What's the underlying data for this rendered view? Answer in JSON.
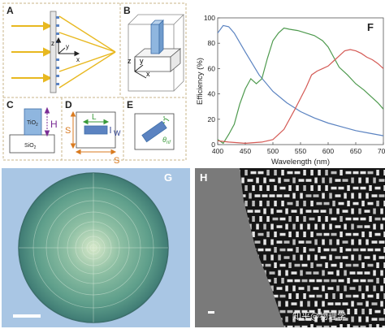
{
  "panels": {
    "A": "A",
    "B": "B",
    "C": "C",
    "D": "D",
    "E": "E",
    "F": "F",
    "G": "G",
    "H": "H"
  },
  "panel_a": {
    "axis_z": "z",
    "axis_y": "y",
    "axis_x": "x"
  },
  "panel_b": {
    "axis_z": "z",
    "axis_y": "y",
    "axis_x": "x"
  },
  "panel_c": {
    "pillar": "TiO",
    "pillar_sub": "2",
    "substrate": "SiO",
    "substrate_sub": "2",
    "height": "H"
  },
  "panel_d": {
    "length": "L",
    "width": "W",
    "period_left": "S",
    "period_bottom": "S"
  },
  "panel_e": {
    "angle": "θ",
    "angle_sub": "nf"
  },
  "panel_h": {
    "watermark": "知乎@物理学"
  },
  "colors": {
    "blue": "#5b83c1",
    "green": "#4e9a4e",
    "red": "#d45a55",
    "arrow": "#e8b820",
    "pillar": "#8fb6df"
  },
  "chart_data": {
    "type": "line",
    "xlabel": "Wavelength (nm)",
    "ylabel": "Efficiency (%)",
    "xlim": [
      400,
      700
    ],
    "ylim": [
      0,
      100
    ],
    "x_ticks": [
      400,
      450,
      500,
      550,
      600,
      650,
      700
    ],
    "y_ticks": [
      0,
      20,
      40,
      60,
      80,
      100
    ],
    "series": [
      {
        "color": "#5b83c1",
        "x": [
          400,
          410,
          420,
          430,
          450,
          475,
          500,
          525,
          550,
          575,
          600,
          625,
          650,
          675,
          700
        ],
        "y": [
          88,
          94,
          93,
          88,
          73,
          55,
          42,
          33,
          26,
          21,
          17,
          14,
          11,
          9,
          7
        ]
      },
      {
        "color": "#4e9a4e",
        "x": [
          400,
          410,
          420,
          430,
          440,
          450,
          460,
          470,
          480,
          490,
          500,
          510,
          520,
          530,
          545,
          560,
          575,
          590,
          600,
          610,
          620,
          635,
          650,
          665,
          680,
          690,
          700
        ],
        "y": [
          4,
          1,
          8,
          16,
          32,
          44,
          52,
          48,
          52,
          68,
          82,
          88,
          92,
          91,
          90,
          88,
          86,
          82,
          77,
          69,
          61,
          55,
          48,
          43,
          37,
          33,
          28
        ]
      },
      {
        "color": "#d45a55",
        "x": [
          400,
          420,
          450,
          480,
          500,
          520,
          540,
          560,
          570,
          580,
          590,
          600,
          610,
          620,
          630,
          640,
          650,
          660,
          670,
          680,
          690,
          700
        ],
        "y": [
          3,
          2,
          1,
          2,
          4,
          12,
          28,
          45,
          55,
          58,
          60,
          62,
          66,
          70,
          74,
          75,
          74,
          72,
          69,
          67,
          64,
          60
        ]
      }
    ]
  }
}
